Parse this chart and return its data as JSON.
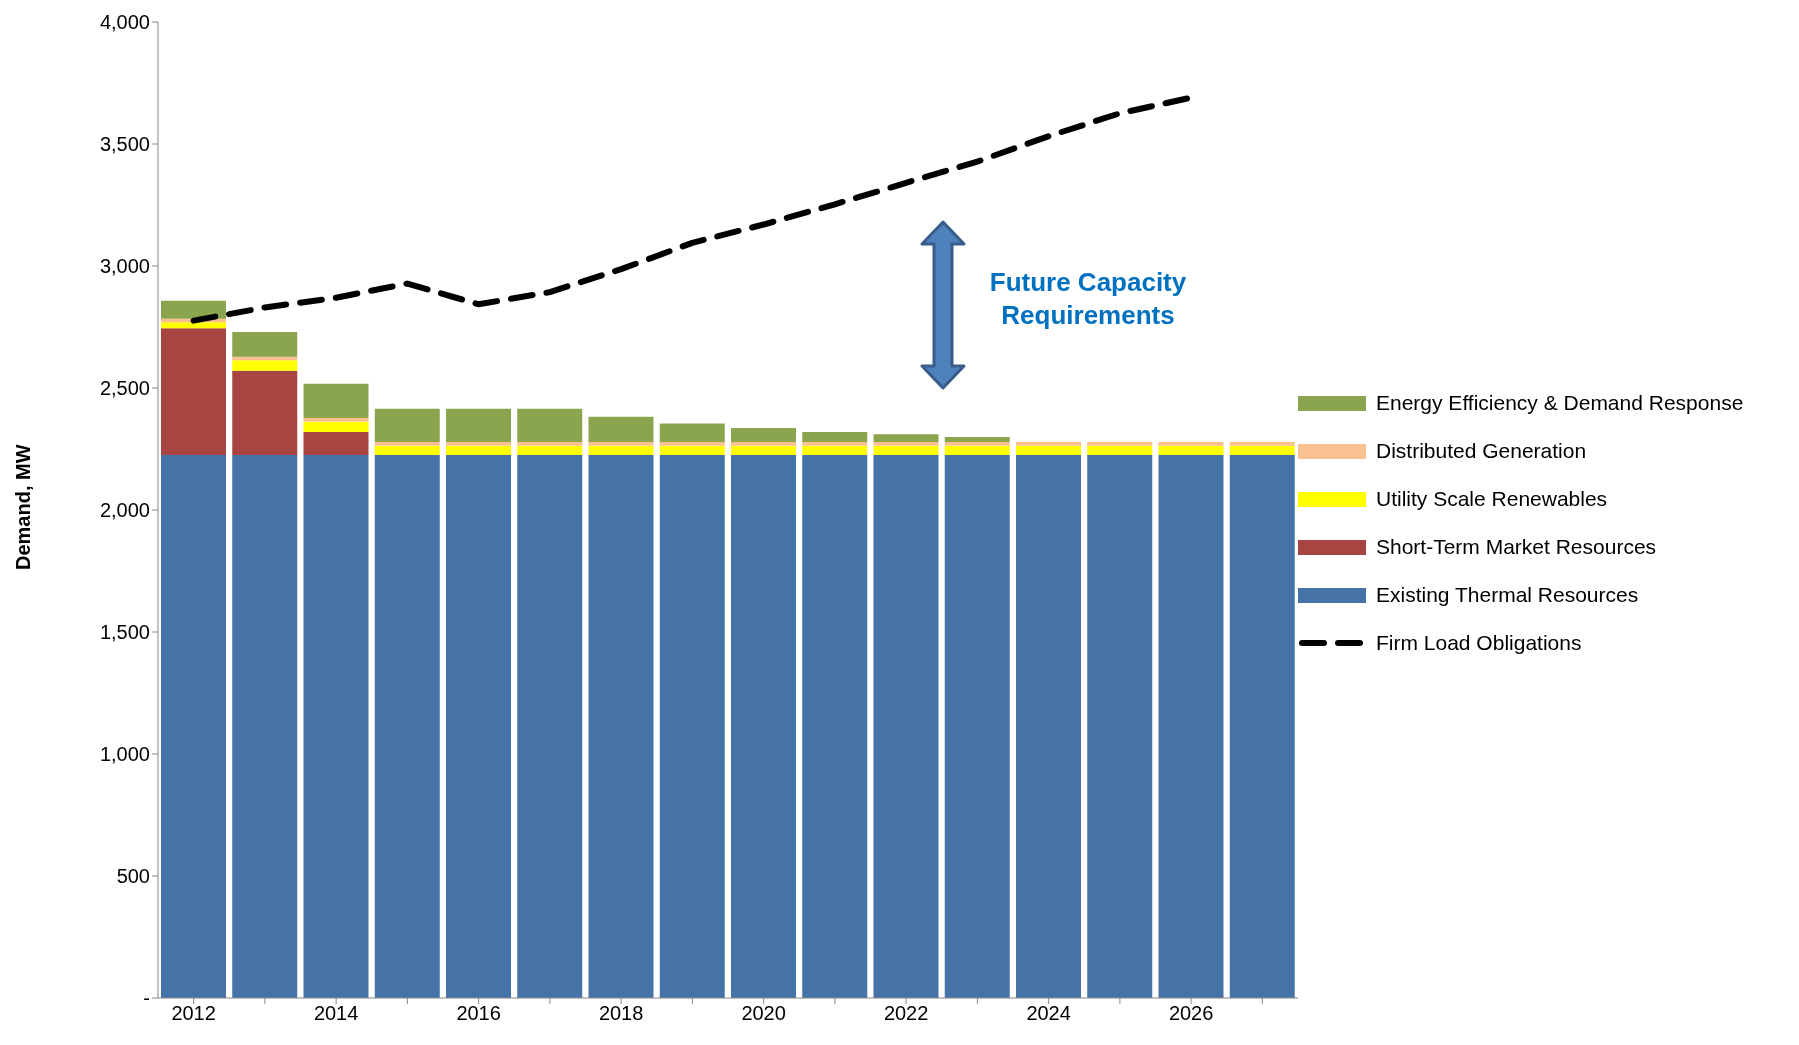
{
  "chart_data": {
    "type": "bar",
    "stacked": true,
    "ylabel": "Demand, MW",
    "categories": [
      "2012",
      null,
      "2014",
      null,
      "2016",
      null,
      "2018",
      null,
      "2020",
      null,
      "2022",
      null,
      "2024",
      null,
      "2026",
      null
    ],
    "series": [
      {
        "name": "Existing Thermal Resources",
        "color": "#4673a7",
        "values": [
          2225,
          2225,
          2225,
          2225,
          2225,
          2225,
          2225,
          2225,
          2225,
          2225,
          2225,
          2225,
          2225,
          2225,
          2225,
          2225
        ]
      },
      {
        "name": "Short-Term Market Resources",
        "color": "#a84543",
        "values": [
          520,
          346,
          95,
          0,
          0,
          0,
          0,
          0,
          0,
          0,
          0,
          0,
          0,
          0,
          0,
          0
        ]
      },
      {
        "name": "Utility Scale Renewables",
        "color": "#ffff00",
        "values": [
          24,
          43,
          42,
          38,
          38,
          38,
          38,
          38,
          38,
          38,
          38,
          38,
          38,
          38,
          38,
          38
        ]
      },
      {
        "name": "Distributed Generation",
        "color": "#fac090",
        "values": [
          15,
          14,
          15,
          16,
          16,
          16,
          16,
          16,
          16,
          16,
          16,
          16,
          16,
          16,
          16,
          16
        ]
      },
      {
        "name": "Energy Efficiency & Demand Response",
        "color": "#8aa54e",
        "values": [
          74,
          102,
          140,
          136,
          136,
          136,
          103,
          76,
          57,
          41,
          31,
          20,
          0,
          0,
          0,
          0
        ]
      },
      {
        "name": "Firm Load Obligations",
        "type": "line",
        "color": "#000000",
        "line_style": "dashed",
        "values": [
          2776,
          2830,
          2870,
          2928,
          2843,
          2893,
          2987,
          3095,
          3170,
          3253,
          3341,
          3428,
          3532,
          3626,
          3690,
          null
        ]
      }
    ],
    "ylim": [
      0,
      4000
    ],
    "yticks": [
      {
        "value": 0,
        "label": "-"
      },
      {
        "value": 500,
        "label": "500"
      },
      {
        "value": 1000,
        "label": "1,000"
      },
      {
        "value": 1500,
        "label": "1,500"
      },
      {
        "value": 2000,
        "label": "2,000"
      },
      {
        "value": 2500,
        "label": "2,500"
      },
      {
        "value": 3000,
        "label": "3,000"
      },
      {
        "value": 3500,
        "label": "3,500"
      },
      {
        "value": 4000,
        "label": "4,000"
      }
    ],
    "legend": "right",
    "annotations": [
      "Future Capacity Requirements"
    ]
  }
}
